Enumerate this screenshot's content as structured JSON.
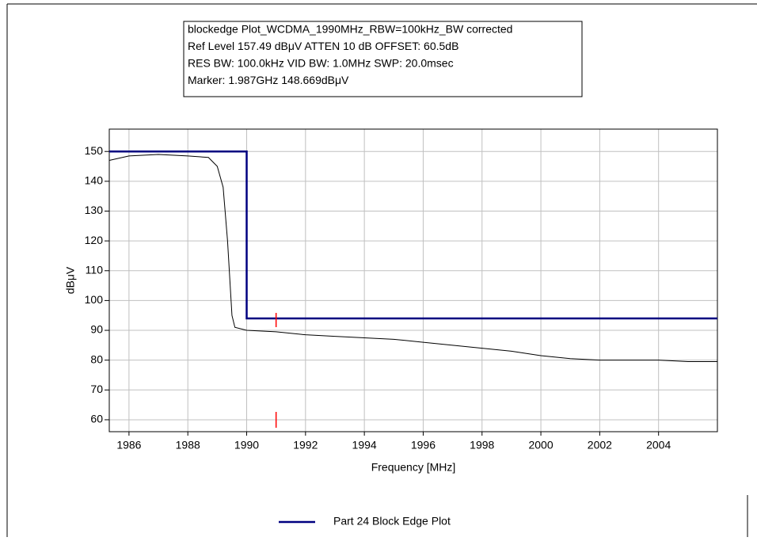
{
  "chart_data": {
    "type": "line",
    "header": [
      "blockedge Plot_WCDMA_1990MHz_RBW=100kHz_BW corrected",
      "Ref Level 157.49 dBμV    ATTEN 10 dB    OFFSET: 60.5dB",
      "RES BW: 100.0kHz  VID BW: 1.0MHz  SWP: 20.0msec",
      "Marker: 1.987GHz  148.669dBμV"
    ],
    "x_label": "Frequency [MHz]",
    "y_label": "dBμV",
    "xlim": [
      1985.33,
      2006
    ],
    "ylim": [
      56,
      157.5
    ],
    "xticks": [
      1986,
      1988,
      1990,
      1992,
      1994,
      1996,
      1998,
      2000,
      2002,
      2004
    ],
    "yticks": [
      60,
      70,
      80,
      90,
      100,
      110,
      120,
      130,
      140,
      150
    ],
    "grid": true,
    "series": [
      {
        "name": "Part 24 Block Edge Plot",
        "color": "#000080",
        "x": [
          1985.33,
          1990,
          1990,
          2006
        ],
        "values": [
          150,
          150,
          94,
          94
        ]
      },
      {
        "color": "#000000",
        "x": [
          1985.33,
          1986,
          1987,
          1988,
          1988.7,
          1989,
          1989.2,
          1989.35,
          1989.5,
          1989.6,
          1990,
          1991,
          1992,
          1993,
          1994,
          1995,
          1996,
          1997,
          1998,
          1999,
          2000,
          2001,
          2002,
          2003,
          2004,
          2005,
          2006
        ],
        "values": [
          147,
          148.5,
          149,
          148.5,
          148,
          145,
          138,
          120,
          95,
          91,
          90,
          89.5,
          88.5,
          88,
          87.5,
          87,
          86,
          85,
          84,
          83,
          81.5,
          80.5,
          80,
          80,
          80,
          79.5,
          79.5
        ]
      }
    ],
    "markers": [
      1991
    ],
    "marker_color": "#ff0000"
  }
}
